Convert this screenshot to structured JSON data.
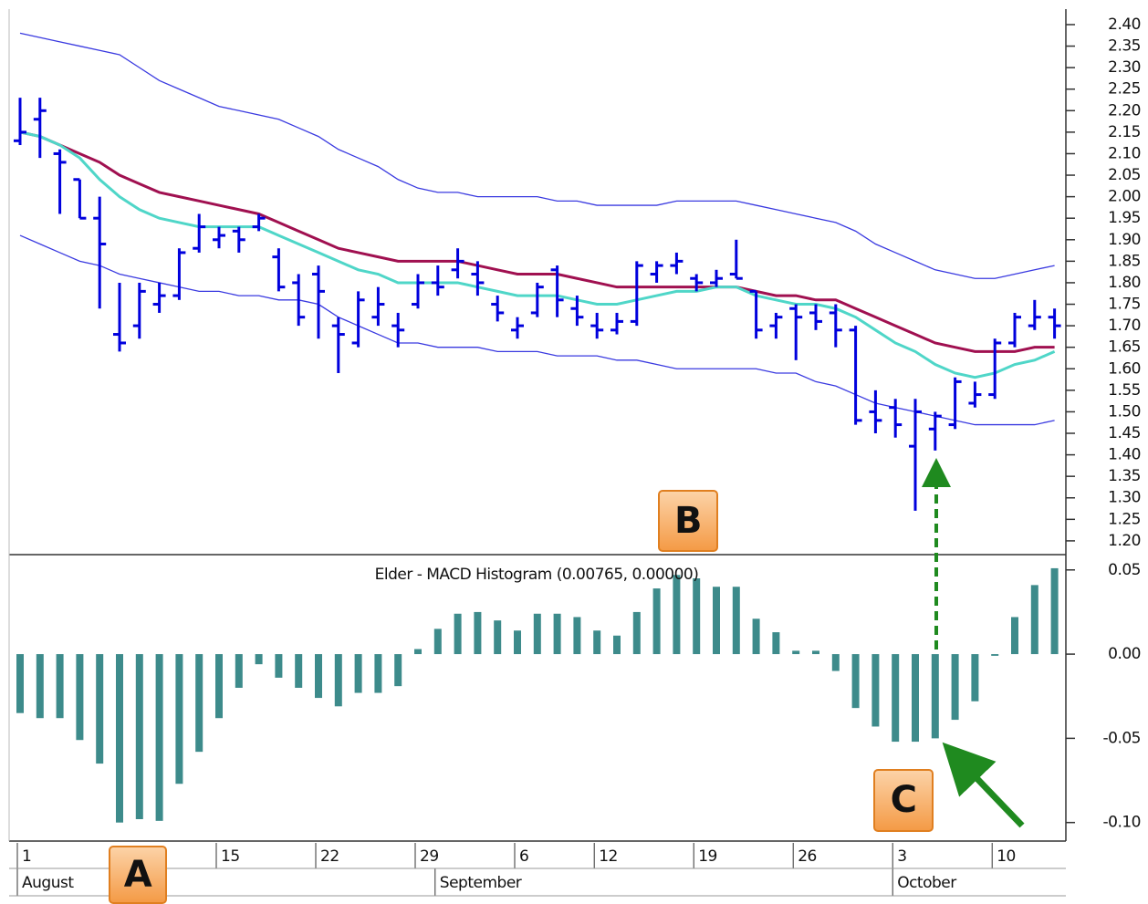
{
  "chart_data": [
    {
      "type": "ohlc",
      "color": "#0000dd",
      "categories": [
        "1",
        null,
        null,
        null,
        null,
        null,
        null,
        null,
        null,
        null,
        "15",
        null,
        null,
        null,
        null,
        "22",
        null,
        null,
        null,
        null,
        "29",
        null,
        null,
        null,
        null,
        "6",
        null,
        null,
        null,
        "12",
        null,
        null,
        null,
        null,
        "19",
        null,
        null,
        null,
        null,
        "26",
        null,
        null,
        null,
        null,
        "3",
        null,
        null,
        null,
        null,
        "10",
        null,
        null,
        null
      ],
      "months": [
        {
          "name": "August",
          "start": 0
        },
        {
          "name": "September",
          "start": 21
        },
        {
          "name": "October",
          "start": 44
        }
      ],
      "open": [
        2.13,
        2.18,
        2.1,
        2.04,
        1.95,
        1.68,
        1.7,
        1.75,
        1.77,
        1.88,
        1.9,
        1.92,
        1.93,
        1.86,
        1.8,
        1.82,
        1.7,
        1.66,
        1.72,
        1.7,
        1.75,
        1.8,
        1.83,
        1.82,
        1.75,
        1.69,
        1.73,
        1.83,
        1.74,
        1.7,
        1.69,
        1.71,
        1.82,
        1.84,
        1.81,
        1.8,
        1.82,
        1.78,
        1.7,
        1.74,
        1.73,
        1.73,
        1.69,
        1.5,
        1.51,
        1.42,
        1.46,
        1.47,
        1.52,
        1.54,
        1.66,
        1.7,
        1.72
      ],
      "high": [
        2.23,
        2.23,
        2.11,
        2.04,
        2.0,
        1.8,
        1.8,
        1.8,
        1.88,
        1.96,
        1.93,
        1.93,
        1.96,
        1.88,
        1.82,
        1.84,
        1.72,
        1.78,
        1.79,
        1.73,
        1.82,
        1.84,
        1.88,
        1.85,
        1.77,
        1.72,
        1.8,
        1.84,
        1.77,
        1.73,
        1.73,
        1.85,
        1.85,
        1.87,
        1.82,
        1.83,
        1.9,
        1.78,
        1.73,
        1.75,
        1.75,
        1.75,
        1.7,
        1.55,
        1.53,
        1.53,
        1.5,
        1.58,
        1.57,
        1.67,
        1.73,
        1.76,
        1.74
      ],
      "low": [
        2.12,
        2.09,
        1.96,
        1.95,
        1.74,
        1.64,
        1.67,
        1.73,
        1.76,
        1.87,
        1.88,
        1.87,
        1.92,
        1.78,
        1.7,
        1.67,
        1.59,
        1.65,
        1.7,
        1.65,
        1.74,
        1.77,
        1.81,
        1.77,
        1.71,
        1.67,
        1.72,
        1.72,
        1.7,
        1.67,
        1.68,
        1.7,
        1.8,
        1.82,
        1.78,
        1.79,
        1.81,
        1.67,
        1.67,
        1.62,
        1.69,
        1.65,
        1.47,
        1.45,
        1.44,
        1.27,
        1.41,
        1.46,
        1.51,
        1.53,
        1.65,
        1.69,
        1.67
      ],
      "close": [
        2.15,
        2.2,
        2.08,
        1.95,
        1.89,
        1.66,
        1.78,
        1.77,
        1.87,
        1.93,
        1.91,
        1.9,
        1.95,
        1.79,
        1.72,
        1.78,
        1.68,
        1.76,
        1.75,
        1.69,
        1.8,
        1.79,
        1.85,
        1.8,
        1.73,
        1.7,
        1.79,
        1.76,
        1.72,
        1.69,
        1.71,
        1.84,
        1.84,
        1.85,
        1.8,
        1.81,
        1.81,
        1.69,
        1.72,
        1.72,
        1.71,
        1.69,
        1.48,
        1.48,
        1.47,
        1.5,
        1.49,
        1.57,
        1.54,
        1.66,
        1.72,
        1.72,
        1.7
      ],
      "lines": [
        {
          "color": "#3a3ae0",
          "width": 1.3,
          "values": [
            2.38,
            2.37,
            2.36,
            2.35,
            2.34,
            2.33,
            2.3,
            2.27,
            2.25,
            2.23,
            2.21,
            2.2,
            2.19,
            2.18,
            2.16,
            2.14,
            2.11,
            2.09,
            2.07,
            2.04,
            2.02,
            2.01,
            2.01,
            2.0,
            2.0,
            2.0,
            2.0,
            1.99,
            1.99,
            1.98,
            1.98,
            1.98,
            1.98,
            1.99,
            1.99,
            1.99,
            1.99,
            1.98,
            1.97,
            1.96,
            1.95,
            1.94,
            1.92,
            1.89,
            1.87,
            1.85,
            1.83,
            1.82,
            1.81,
            1.81,
            1.82,
            1.83,
            1.84
          ]
        },
        {
          "color": "#3a3ae0",
          "width": 1.3,
          "values": [
            1.91,
            1.89,
            1.87,
            1.85,
            1.84,
            1.82,
            1.81,
            1.8,
            1.79,
            1.78,
            1.78,
            1.77,
            1.77,
            1.76,
            1.76,
            1.75,
            1.72,
            1.7,
            1.68,
            1.66,
            1.66,
            1.65,
            1.65,
            1.65,
            1.64,
            1.64,
            1.64,
            1.63,
            1.63,
            1.63,
            1.62,
            1.62,
            1.61,
            1.6,
            1.6,
            1.6,
            1.6,
            1.6,
            1.59,
            1.59,
            1.57,
            1.56,
            1.54,
            1.52,
            1.51,
            1.5,
            1.49,
            1.48,
            1.47,
            1.47,
            1.47,
            1.47,
            1.48
          ]
        },
        {
          "color": "#a01050",
          "width": 3,
          "values": [
            2.15,
            2.14,
            2.12,
            2.1,
            2.08,
            2.05,
            2.03,
            2.01,
            2.0,
            1.99,
            1.98,
            1.97,
            1.96,
            1.94,
            1.92,
            1.9,
            1.88,
            1.87,
            1.86,
            1.85,
            1.85,
            1.85,
            1.85,
            1.84,
            1.83,
            1.82,
            1.82,
            1.82,
            1.81,
            1.8,
            1.79,
            1.79,
            1.79,
            1.79,
            1.79,
            1.79,
            1.79,
            1.78,
            1.77,
            1.77,
            1.76,
            1.76,
            1.74,
            1.72,
            1.7,
            1.68,
            1.66,
            1.65,
            1.64,
            1.64,
            1.64,
            1.65,
            1.65
          ]
        },
        {
          "color": "#4fd6c8",
          "width": 3,
          "values": [
            2.15,
            2.14,
            2.12,
            2.09,
            2.04,
            2.0,
            1.97,
            1.95,
            1.94,
            1.93,
            1.93,
            1.93,
            1.93,
            1.91,
            1.89,
            1.87,
            1.85,
            1.83,
            1.82,
            1.8,
            1.8,
            1.8,
            1.8,
            1.79,
            1.78,
            1.77,
            1.77,
            1.77,
            1.76,
            1.75,
            1.75,
            1.76,
            1.77,
            1.78,
            1.78,
            1.79,
            1.79,
            1.77,
            1.76,
            1.75,
            1.75,
            1.74,
            1.72,
            1.69,
            1.66,
            1.64,
            1.61,
            1.59,
            1.58,
            1.59,
            1.61,
            1.62,
            1.64
          ]
        }
      ],
      "ylim": [
        1.168,
        2.436
      ],
      "yticks": [
        {
          "value": 1.2,
          "label": "1.20"
        },
        {
          "value": 1.25,
          "label": "1.25"
        },
        {
          "value": 1.3,
          "label": "1.30"
        },
        {
          "value": 1.35,
          "label": "1.35"
        },
        {
          "value": 1.4,
          "label": "1.40"
        },
        {
          "value": 1.45,
          "label": "1.45"
        },
        {
          "value": 1.5,
          "label": "1.50"
        },
        {
          "value": 1.55,
          "label": "1.55"
        },
        {
          "value": 1.6,
          "label": "1.60"
        },
        {
          "value": 1.65,
          "label": "1.65"
        },
        {
          "value": 1.7,
          "label": "1.70"
        },
        {
          "value": 1.75,
          "label": "1.75"
        },
        {
          "value": 1.8,
          "label": "1.80"
        },
        {
          "value": 1.85,
          "label": "1.85"
        },
        {
          "value": 1.9,
          "label": "1.90"
        },
        {
          "value": 1.95,
          "label": "1.95"
        },
        {
          "value": 2.0,
          "label": "2.00"
        },
        {
          "value": 2.05,
          "label": "2.05"
        },
        {
          "value": 2.1,
          "label": "2.10"
        },
        {
          "value": 2.15,
          "label": "2.15"
        },
        {
          "value": 2.2,
          "label": "2.20"
        },
        {
          "value": 2.25,
          "label": "2.25"
        },
        {
          "value": 2.3,
          "label": "2.30"
        },
        {
          "value": 2.35,
          "label": "2.35"
        },
        {
          "value": 2.4,
          "label": "2.40"
        }
      ]
    },
    {
      "type": "bar",
      "title": "Elder - MACD Histogram (0.00765, 0.00000)",
      "color": "#3d8b8b",
      "values": [
        -0.035,
        -0.038,
        -0.038,
        -0.051,
        -0.065,
        -0.1,
        -0.098,
        -0.099,
        -0.077,
        -0.058,
        -0.038,
        -0.02,
        -0.006,
        -0.014,
        -0.02,
        -0.026,
        -0.031,
        -0.023,
        -0.023,
        -0.019,
        0.003,
        0.015,
        0.024,
        0.025,
        0.02,
        0.014,
        0.024,
        0.024,
        0.022,
        0.014,
        0.011,
        0.025,
        0.039,
        0.047,
        0.045,
        0.04,
        0.04,
        0.021,
        0.013,
        0.002,
        0.002,
        -0.01,
        -0.032,
        -0.043,
        -0.052,
        -0.052,
        -0.05,
        -0.039,
        -0.028,
        -0.001,
        0.022,
        0.041,
        0.051
      ],
      "ylim": [
        -0.111,
        0.058
      ],
      "yticks": [
        {
          "value": 0.05,
          "label": "0.05"
        },
        {
          "value": 0,
          "label": "0.00"
        },
        {
          "value": -0.05,
          "label": "-0.05"
        },
        {
          "value": -0.1,
          "label": "-0.10"
        }
      ]
    }
  ],
  "annotations": [
    "A",
    "B",
    "C"
  ]
}
